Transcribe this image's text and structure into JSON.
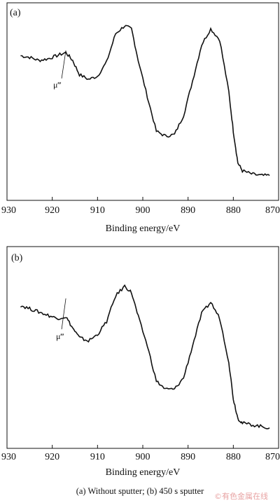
{
  "chart_data": [
    {
      "type": "line",
      "panel_label": "(a)",
      "xlabel": "Binding energy/eV",
      "ylabel": "",
      "xlim": [
        930,
        870
      ],
      "x_ticks": [
        930,
        920,
        910,
        900,
        890,
        880,
        870
      ],
      "y_ticks_shown": false,
      "annotation": "μ‴",
      "annotation_x": 917,
      "series": [
        {
          "x": [
            927,
            925,
            923,
            921,
            919,
            917,
            915.5,
            914,
            912,
            910,
            908,
            906,
            904,
            902.5,
            901,
            899,
            897,
            895,
            893,
            891,
            889,
            887,
            885,
            883,
            881,
            880,
            879,
            878,
            876,
            874,
            872
          ],
          "y": [
            0.78,
            0.77,
            0.75,
            0.76,
            0.78,
            0.8,
            0.75,
            0.66,
            0.63,
            0.65,
            0.74,
            0.92,
            0.97,
            0.95,
            0.75,
            0.52,
            0.3,
            0.27,
            0.28,
            0.4,
            0.62,
            0.85,
            0.95,
            0.88,
            0.55,
            0.3,
            0.1,
            0.05,
            0.03,
            0.02,
            0.02
          ]
        }
      ]
    },
    {
      "type": "line",
      "panel_label": "(b)",
      "xlabel": "Binding energy/eV",
      "ylabel": "",
      "xlim": [
        930,
        870
      ],
      "x_ticks": [
        930,
        920,
        910,
        900,
        890,
        880,
        870
      ],
      "y_ticks_shown": false,
      "annotation": "μ‴",
      "annotation_x": 917,
      "series": [
        {
          "x": [
            927,
            925,
            923,
            921,
            919,
            917,
            915.5,
            914,
            912,
            910,
            908,
            906,
            904,
            902.5,
            901,
            899,
            897,
            895,
            893,
            891,
            889,
            887,
            885,
            883,
            881,
            880,
            879,
            878,
            876,
            874,
            872
          ],
          "y": [
            0.8,
            0.78,
            0.76,
            0.74,
            0.72,
            0.73,
            0.66,
            0.6,
            0.58,
            0.62,
            0.7,
            0.86,
            0.92,
            0.88,
            0.73,
            0.55,
            0.33,
            0.28,
            0.28,
            0.35,
            0.55,
            0.75,
            0.82,
            0.72,
            0.45,
            0.22,
            0.1,
            0.07,
            0.06,
            0.05,
            0.04
          ]
        }
      ]
    }
  ],
  "caption": "(a) Without sputter; (b) 450 s sputter",
  "watermark": "©有色金属在线"
}
